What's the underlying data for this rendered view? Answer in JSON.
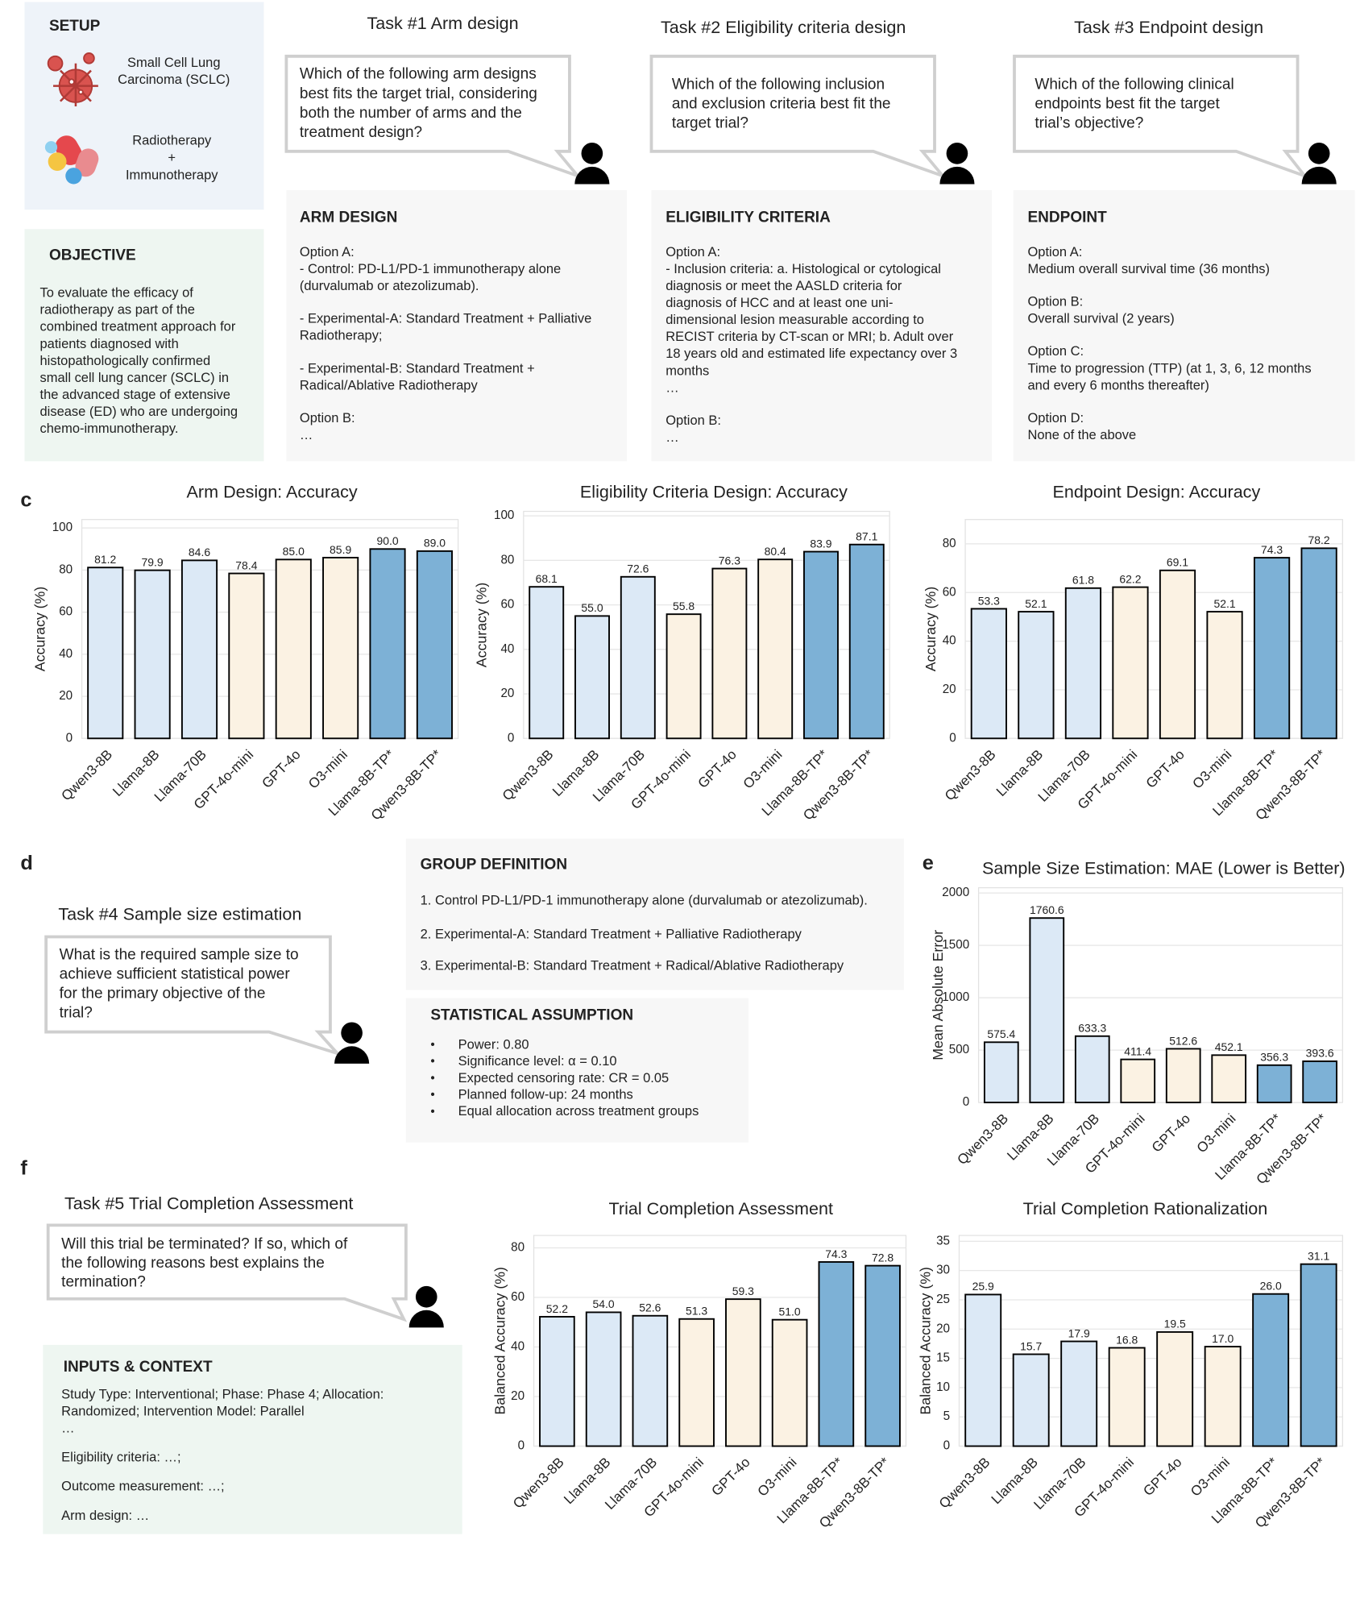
{
  "setup": {
    "title": "SETUP",
    "disease": [
      "Small Cell Lung",
      "Carcinoma (SCLC)"
    ],
    "treatment": [
      "Radiotherapy",
      "+",
      "Immunotherapy"
    ]
  },
  "objective": {
    "title": "OBJECTIVE",
    "lines": [
      "To evaluate the efficacy of",
      "radiotherapy as part of the",
      "combined treatment approach for",
      "patients diagnosed with",
      "histopathologically confirmed",
      "small cell lung cancer (SCLC) in",
      "the advanced stage of extensive",
      "disease (ED) who are undergoing",
      "chemo-immunotherapy."
    ]
  },
  "tasks": [
    {
      "title": "Task #1 Arm design",
      "question": [
        "Which of the following arm designs",
        "best fits the target trial, considering",
        "both the number of arms and the",
        "treatment design?"
      ],
      "box_title": "ARM DESIGN",
      "paragraphs": [
        [
          "Option A:",
          "- Control: PD-L1/PD-1 immunotherapy alone",
          "(durvalumab or atezolizumab)."
        ],
        [
          "- Experimental-A: Standard Treatment + Palliative",
          "Radiotherapy;"
        ],
        [
          "- Experimental-B: Standard Treatment +",
          "Radical/Ablative Radiotherapy"
        ],
        [
          "Option B:",
          "…"
        ]
      ]
    },
    {
      "title": "Task #2 Eligibility criteria design",
      "question": [
        "Which of the following inclusion",
        "and exclusion criteria best fit the",
        "target trial?"
      ],
      "box_title": "ELIGIBILITY CRITERIA",
      "paragraphs": [
        [
          "Option A:",
          "- Inclusion criteria: a. Histological or cytological",
          "diagnosis or meet the AASLD criteria for",
          "diagnosis of HCC and at least one uni-",
          "dimensional lesion measurable according to",
          "RECIST criteria by CT-scan or MRI; b. Adult over",
          "18 years old and estimated life expectancy over 3",
          "months",
          "…"
        ],
        [
          "Option B:",
          "…"
        ]
      ]
    },
    {
      "title": "Task #3 Endpoint design",
      "question": [
        "Which of the following clinical",
        "endpoints best fit the target",
        "trial’s objective?"
      ],
      "box_title": "ENDPOINT",
      "paragraphs": [
        [
          "Option A:",
          "Medium overall survival time (36 months)"
        ],
        [
          "Option B:",
          "Overall survival (2 years)"
        ],
        [
          "Option C:",
          "Time to progression (TTP) (at 1, 3, 6, 12 months",
          "and every 6 months thereafter)"
        ],
        [
          "Option D:",
          "None of the above"
        ]
      ]
    }
  ],
  "panel_labels": [
    "c",
    "d",
    "e",
    "f"
  ],
  "task4": {
    "title": "Task #4 Sample size estimation",
    "question": [
      "What is the required sample size to",
      "achieve sufficient statistical power",
      "for the primary objective of the",
      "trial?"
    ]
  },
  "group_definition": {
    "title": "GROUP DEFINITION",
    "items": [
      "1. Control PD-L1/PD-1 immunotherapy alone (durvalumab or atezolizumab).",
      "2. Experimental-A:  Standard Treatment + Palliative Radiotherapy",
      "3. Experimental-B: Standard Treatment + Radical/Ablative Radiotherapy"
    ]
  },
  "statistical_assumption": {
    "title": "STATISTICAL ASSUMPTION",
    "bullet": "•",
    "items": [
      "Power: 0.80",
      "Significance level: α = 0.10",
      "Expected censoring rate: CR = 0.05",
      "Planned follow-up: 24 months",
      "Equal allocation across treatment groups"
    ]
  },
  "task5": {
    "title": "Task #5 Trial Completion Assessment",
    "question": [
      "Will this trial be terminated? If so, which of",
      "the following reasons best explains the",
      "termination?"
    ]
  },
  "inputs": {
    "title": "INPUTS & CONTEXT",
    "paragraphs": [
      [
        "Study Type: Interventional; Phase: Phase 4; Allocation:",
        "Randomized; Intervention Model: Parallel",
        "…"
      ],
      [
        "Eligibility criteria: …;"
      ],
      [
        "Outcome measurement: …;"
      ],
      [
        "Arm design: …"
      ]
    ]
  },
  "chart_data": [
    {
      "type": "bar",
      "title": "Arm Design: Accuracy",
      "ylabel": "Accuracy (%)",
      "categories": [
        "Qwen3-8B",
        "Llama-8B",
        "Llama-70B",
        "GPT-4o-mini",
        "GPT-4o",
        "O3-mini",
        "Llama-8B-TP*",
        "Qwen3-8B-TP*"
      ],
      "values": [
        81.2,
        79.9,
        84.6,
        78.4,
        85.0,
        85.9,
        90.0,
        89.0
      ],
      "value_labels": [
        "81.2",
        "79.9",
        "84.6",
        "78.4",
        "85.0",
        "85.9",
        "90.0",
        "89.0"
      ],
      "colors": [
        "#dce9f6",
        "#dce9f6",
        "#dce9f6",
        "#fbf2e3",
        "#fbf2e3",
        "#fbf2e3",
        "#7db1d6",
        "#7db1d6"
      ],
      "ylim": [
        0,
        104
      ],
      "yticks": [
        0,
        20,
        40,
        60,
        80,
        100
      ],
      "grid": true
    },
    {
      "type": "bar",
      "title": "Eligibility Criteria Design: Accuracy",
      "ylabel": "Accuracy (%)",
      "categories": [
        "Qwen3-8B",
        "Llama-8B",
        "Llama-70B",
        "GPT-4o-mini",
        "GPT-4o",
        "O3-mini",
        "Llama-8B-TP*",
        "Qwen3-8B-TP*"
      ],
      "values": [
        68.1,
        55.0,
        72.6,
        55.8,
        76.3,
        80.4,
        83.9,
        87.1
      ],
      "value_labels": [
        "68.1",
        "55.0",
        "72.6",
        "55.8",
        "76.3",
        "80.4",
        "83.9",
        "87.1"
      ],
      "colors": [
        "#dce9f6",
        "#dce9f6",
        "#dce9f6",
        "#fbf2e3",
        "#fbf2e3",
        "#fbf2e3",
        "#7db1d6",
        "#7db1d6"
      ],
      "ylim": [
        0,
        102
      ],
      "yticks": [
        0,
        20,
        40,
        60,
        80,
        100
      ],
      "grid": true
    },
    {
      "type": "bar",
      "title": "Endpoint Design: Accuracy",
      "ylabel": "Accuracy (%)",
      "categories": [
        "Qwen3-8B",
        "Llama-8B",
        "Llama-70B",
        "GPT-4o-mini",
        "GPT-4o",
        "O3-mini",
        "Llama-8B-TP*",
        "Qwen3-8B-TP*"
      ],
      "values": [
        53.3,
        52.1,
        61.8,
        62.2,
        69.1,
        52.1,
        74.3,
        78.2
      ],
      "value_labels": [
        "53.3",
        "52.1",
        "61.8",
        "62.2",
        "69.1",
        "52.1",
        "74.3",
        "78.2"
      ],
      "colors": [
        "#dce9f6",
        "#dce9f6",
        "#dce9f6",
        "#fbf2e3",
        "#fbf2e3",
        "#fbf2e3",
        "#7db1d6",
        "#7db1d6"
      ],
      "ylim": [
        0,
        90
      ],
      "yticks": [
        0,
        20,
        40,
        60,
        80
      ],
      "grid": true
    },
    {
      "type": "bar",
      "title": "Sample Size Estimation: MAE (Lower is Better)",
      "ylabel": "Mean Absolute Error",
      "categories": [
        "Qwen3-8B",
        "Llama-8B",
        "Llama-70B",
        "GPT-4o-mini",
        "GPT-4o",
        "O3-mini",
        "Llama-8B-TP*",
        "Qwen3-8B-TP*"
      ],
      "values": [
        575.4,
        1760.6,
        633.3,
        411.4,
        512.6,
        452.1,
        356.3,
        393.6
      ],
      "colors": [
        "#dce9f6",
        "#dce9f6",
        "#dce9f6",
        "#fbf2e3",
        "#fbf2e3",
        "#fbf2e3",
        "#7db1d6",
        "#7db1d6"
      ],
      "ylim": [
        0,
        2050
      ],
      "yticks": [
        0,
        500,
        1000,
        1500,
        2000
      ],
      "grid": true
    },
    {
      "type": "bar",
      "title": "Trial Completion Assessment",
      "ylabel": "Balanced Accuracy (%)",
      "categories": [
        "Qwen3-8B",
        "Llama-8B",
        "Llama-70B",
        "GPT-4o-mini",
        "GPT-4o",
        "O3-mini",
        "Llama-8B-TP*",
        "Qwen3-8B-TP*"
      ],
      "values": [
        52.2,
        54.0,
        52.6,
        51.3,
        59.3,
        51.0,
        74.3,
        72.8
      ],
      "value_labels": [
        "52.2",
        "54.0",
        "52.6",
        "51.3",
        "59.3",
        "51.0",
        "74.3",
        "72.8"
      ],
      "colors": [
        "#dce9f6",
        "#dce9f6",
        "#dce9f6",
        "#fbf2e3",
        "#fbf2e3",
        "#fbf2e3",
        "#7db1d6",
        "#7db1d6"
      ],
      "ylim": [
        0,
        85
      ],
      "yticks": [
        0,
        20,
        40,
        60,
        80
      ],
      "grid": true
    },
    {
      "type": "bar",
      "title": "Trial Completion Rationalization",
      "ylabel": "Balanced Accuracy (%)",
      "categories": [
        "Qwen3-8B",
        "Llama-8B",
        "Llama-70B",
        "GPT-4o-mini",
        "GPT-4o",
        "O3-mini",
        "Llama-8B-TP*",
        "Qwen3-8B-TP*"
      ],
      "values": [
        25.9,
        15.7,
        17.9,
        16.8,
        19.5,
        17.0,
        26.0,
        31.1
      ],
      "value_labels": [
        "25.9",
        "15.7",
        "17.9",
        "16.8",
        "19.5",
        "17.0",
        "26.0",
        "31.1"
      ],
      "colors": [
        "#dce9f6",
        "#dce9f6",
        "#dce9f6",
        "#fbf2e3",
        "#fbf2e3",
        "#fbf2e3",
        "#7db1d6",
        "#7db1d6"
      ],
      "ylim": [
        0,
        36
      ],
      "yticks": [
        0,
        5,
        10,
        15,
        20,
        25,
        30,
        35
      ],
      "grid": true
    }
  ]
}
